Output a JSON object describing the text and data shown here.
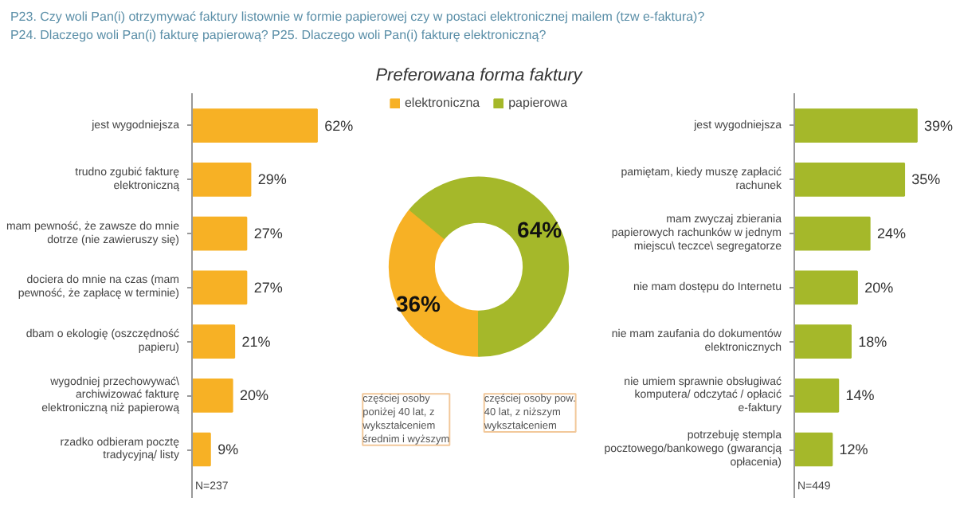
{
  "chart_data": [
    {
      "type": "bar",
      "orientation": "horizontal",
      "color": "#f7b125",
      "annotations": [
        "P23. Czy woli Pan(i) otrzymywać faktury listownie w formie papierowej czy w postaci elektronicznej mailem (tzw e-faktura)?",
        "P24. Dlaczego woli Pan(i) fakturę papierową? P25. Dlaczego woli Pan(i) fakturę elektroniczną?",
        "N=237"
      ],
      "categories": [
        "jest wygodniejsza",
        "trudno zgubić fakturę elektroniczną",
        "mam pewność, że zawsze do mnie dotrze (nie zawieruszy się)",
        "dociera do mnie na czas (mam pewność, że zapłacę w terminie)",
        "dbam o ekologię (oszczędność papieru)",
        "wygodniej przechowywać\\ archiwizować fakturę elektroniczną niż papierową",
        "rzadko odbieram pocztę tradycyjną/ listy"
      ],
      "values": [
        62,
        29,
        27,
        27,
        21,
        20,
        9
      ],
      "value_labels": [
        "62%",
        "29%",
        "27%",
        "27%",
        "21%",
        "20%",
        "9%"
      ]
    },
    {
      "type": "donut",
      "title": "Preferowana forma faktury",
      "legend": "top",
      "categories": [
        "elektroniczna",
        "papierowa"
      ],
      "values": [
        36,
        64
      ],
      "colors": [
        "#f7b125",
        "#a5b82a"
      ],
      "value_labels": [
        "36%",
        "64%"
      ],
      "annotations": [
        "częściej osoby poniżej 40 lat, z wykształceniem średnim i wyższym",
        "częściej osoby pow. 40 lat, z niższym wykształceniem"
      ]
    },
    {
      "type": "bar",
      "orientation": "horizontal",
      "color": "#a5b82a",
      "annotations": [
        "N=449"
      ],
      "categories": [
        "jest wygodniejsza",
        "pamiętam, kiedy muszę zapłacić rachunek",
        "mam zwyczaj zbierania papierowych rachunków w jednym miejscu\\ teczce\\ segregatorze",
        "nie mam dostępu do Internetu",
        "nie mam zaufania do dokumentów elektronicznych",
        "nie umiem sprawnie obsługiwać komputera/ odczytać / opłacić e-faktury",
        "potrzebuję stempla pocztowego/bankowego (gwarancją opłacenia)"
      ],
      "values": [
        39,
        35,
        24,
        20,
        18,
        14,
        12
      ],
      "value_labels": [
        "39%",
        "35%",
        "24%",
        "20%",
        "18%",
        "14%",
        "12%"
      ]
    }
  ]
}
